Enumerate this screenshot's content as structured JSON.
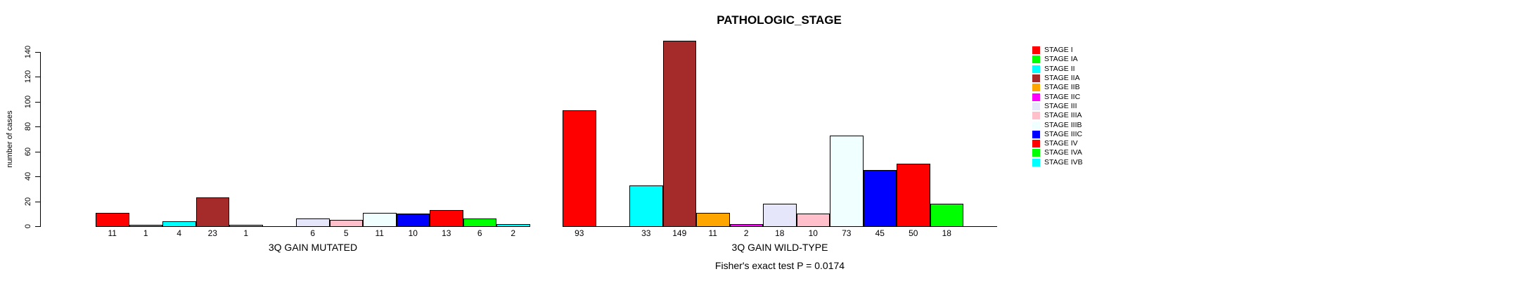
{
  "title": "PATHOLOGIC_STAGE",
  "footer": "Fisher's exact test P = 0.0174",
  "y_axis": {
    "label": "number of cases",
    "ticks": [
      0,
      20,
      40,
      60,
      80,
      100,
      120,
      140
    ]
  },
  "legend": {
    "entries": [
      {
        "label": "STAGE I",
        "color": "#FF0000"
      },
      {
        "label": "STAGE IA",
        "color": "#00FF00"
      },
      {
        "label": "STAGE II",
        "color": "#00FFFF"
      },
      {
        "label": "STAGE IIA",
        "color": "#A52A2A"
      },
      {
        "label": "STAGE IIB",
        "color": "#FFA500"
      },
      {
        "label": "STAGE IIC",
        "color": "#FF00FF"
      },
      {
        "label": "STAGE III",
        "color": "#E6E6FA"
      },
      {
        "label": "STAGE IIIA",
        "color": "#FFC0CB"
      },
      {
        "label": "STAGE IIIB",
        "color": "#F0FFFF"
      },
      {
        "label": "STAGE IIIC",
        "color": "#0000FF"
      },
      {
        "label": "STAGE IV",
        "color": "#FF0000"
      },
      {
        "label": "STAGE IVA",
        "color": "#00FF00"
      },
      {
        "label": "STAGE IVB",
        "color": "#00FFFF"
      }
    ]
  },
  "chart_data": {
    "type": "bar",
    "title": "PATHOLOGIC_STAGE",
    "ylabel": "number of cases",
    "ylim": [
      0,
      149
    ],
    "yticks": [
      0,
      20,
      40,
      60,
      80,
      100,
      120,
      140
    ],
    "grid": false,
    "legend_position": "right",
    "annotation": "Fisher's exact test P = 0.0174",
    "categories": [
      "STAGE I",
      "STAGE IA",
      "STAGE II",
      "STAGE IIA",
      "STAGE IIB",
      "STAGE IIC",
      "STAGE III",
      "STAGE IIIA",
      "STAGE IIIB",
      "STAGE IIIC",
      "STAGE IV",
      "STAGE IVA",
      "STAGE IVB"
    ],
    "colors": [
      "#FF0000",
      "#00FF00",
      "#00FFFF",
      "#A52A2A",
      "#FFA500",
      "#FF00FF",
      "#E6E6FA",
      "#FFC0CB",
      "#F0FFFF",
      "#0000FF",
      "#FF0000",
      "#00FF00",
      "#00FFFF"
    ],
    "series": [
      {
        "name": "3Q GAIN MUTATED",
        "values": [
          11,
          1,
          4,
          23,
          1,
          0,
          6,
          5,
          11,
          10,
          13,
          6,
          2
        ]
      },
      {
        "name": "3Q GAIN WILD-TYPE",
        "values": [
          93,
          0,
          33,
          149,
          11,
          2,
          18,
          10,
          73,
          45,
          50,
          18,
          0
        ]
      }
    ]
  }
}
